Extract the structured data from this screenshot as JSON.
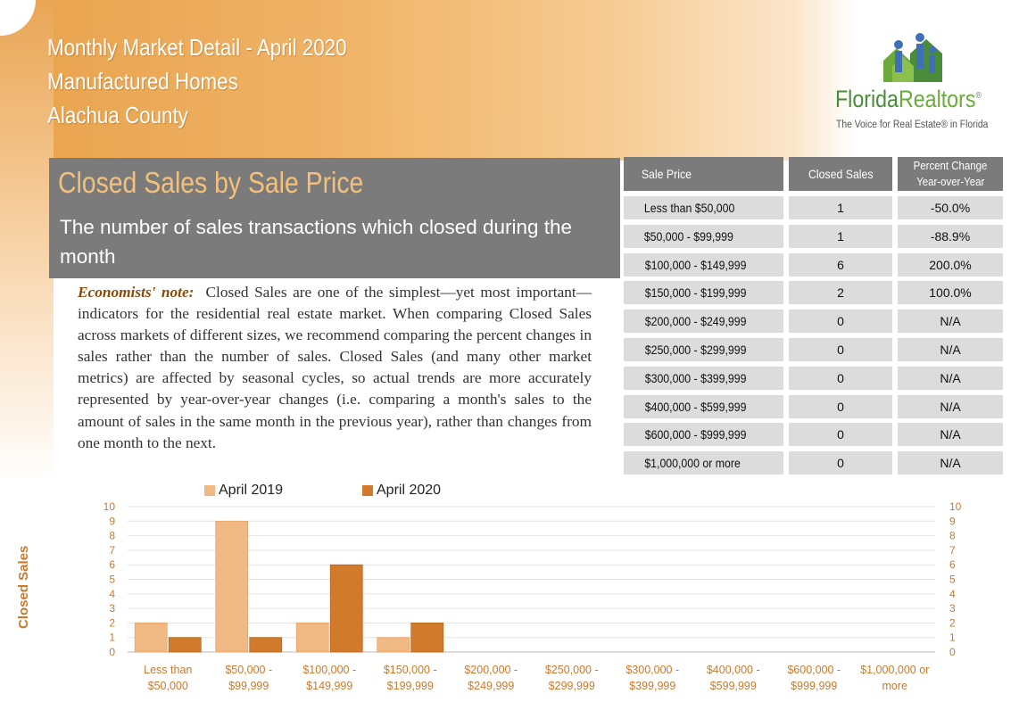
{
  "header": {
    "line1": "Monthly Market Detail - April 2020",
    "line2": "Manufactured Homes",
    "line3": "Alachua County"
  },
  "logo": {
    "name_part1": "Florida",
    "name_part2": "Realtors",
    "registered": "®",
    "tagline": "The Voice for Real Estate® in Florida",
    "icon": "houses-people-icon"
  },
  "section": {
    "title": "Closed Sales by Sale Price",
    "subtitle": "The number of sales transactions which closed during the month",
    "note_lead": "Economists' note:",
    "note_body": "Closed Sales are one of the simplest—yet most important—indicators for the residential real estate market. When comparing Closed Sales across markets of different sizes, we recommend comparing the percent changes in sales rather than the number of sales. Closed Sales (and many other market metrics) are affected by seasonal cycles, so actual trends are more accurately represented by year-over-year changes (i.e. comparing a month's sales to the amount of sales in the same month in the previous year), rather than changes from one month to the next."
  },
  "table": {
    "headers": [
      "Sale Price",
      "Closed Sales",
      "Percent Change Year-over-Year"
    ],
    "header_pct_line1": "Percent Change",
    "header_pct_line2": "Year-over-Year",
    "rows": [
      {
        "price": "Less than $50,000",
        "sales": "1",
        "pct": "-50.0%"
      },
      {
        "price": "$50,000 - $99,999",
        "sales": "1",
        "pct": "-88.9%"
      },
      {
        "price": "$100,000 - $149,999",
        "sales": "6",
        "pct": "200.0%"
      },
      {
        "price": "$150,000 - $199,999",
        "sales": "2",
        "pct": "100.0%"
      },
      {
        "price": "$200,000 - $249,999",
        "sales": "0",
        "pct": "N/A"
      },
      {
        "price": "$250,000 - $299,999",
        "sales": "0",
        "pct": "N/A"
      },
      {
        "price": "$300,000 - $399,999",
        "sales": "0",
        "pct": "N/A"
      },
      {
        "price": "$400,000 - $599,999",
        "sales": "0",
        "pct": "N/A"
      },
      {
        "price": "$600,000 - $999,999",
        "sales": "0",
        "pct": "N/A"
      },
      {
        "price": "$1,000,000 or more",
        "sales": "0",
        "pct": "N/A"
      }
    ]
  },
  "colors": {
    "series_2019": "#f0b984",
    "series_2020": "#d27a2c",
    "axis_text": "#c97a2c",
    "panel": "#7b7b7b",
    "cell": "#dcdcdc"
  },
  "chart_data": {
    "type": "bar",
    "ylabel": "Closed Sales",
    "ylim": [
      0,
      10
    ],
    "yticks": [
      0,
      1,
      2,
      3,
      4,
      5,
      6,
      7,
      8,
      9,
      10
    ],
    "grid": true,
    "legend_position": "top",
    "categories": [
      [
        "Less than",
        "$50,000"
      ],
      [
        "$50,000 -",
        "$99,999"
      ],
      [
        "$100,000 -",
        "$149,999"
      ],
      [
        "$150,000 -",
        "$199,999"
      ],
      [
        "$200,000 -",
        "$249,999"
      ],
      [
        "$250,000 -",
        "$299,999"
      ],
      [
        "$300,000 -",
        "$399,999"
      ],
      [
        "$400,000 -",
        "$599,999"
      ],
      [
        "$600,000 -",
        "$999,999"
      ],
      [
        "$1,000,000 or",
        "more"
      ]
    ],
    "series": [
      {
        "name": "April 2019",
        "values": [
          2,
          9,
          2,
          1,
          0,
          0,
          0,
          0,
          0,
          0
        ]
      },
      {
        "name": "April 2020",
        "values": [
          1,
          1,
          6,
          2,
          0,
          0,
          0,
          0,
          0,
          0
        ]
      }
    ]
  }
}
